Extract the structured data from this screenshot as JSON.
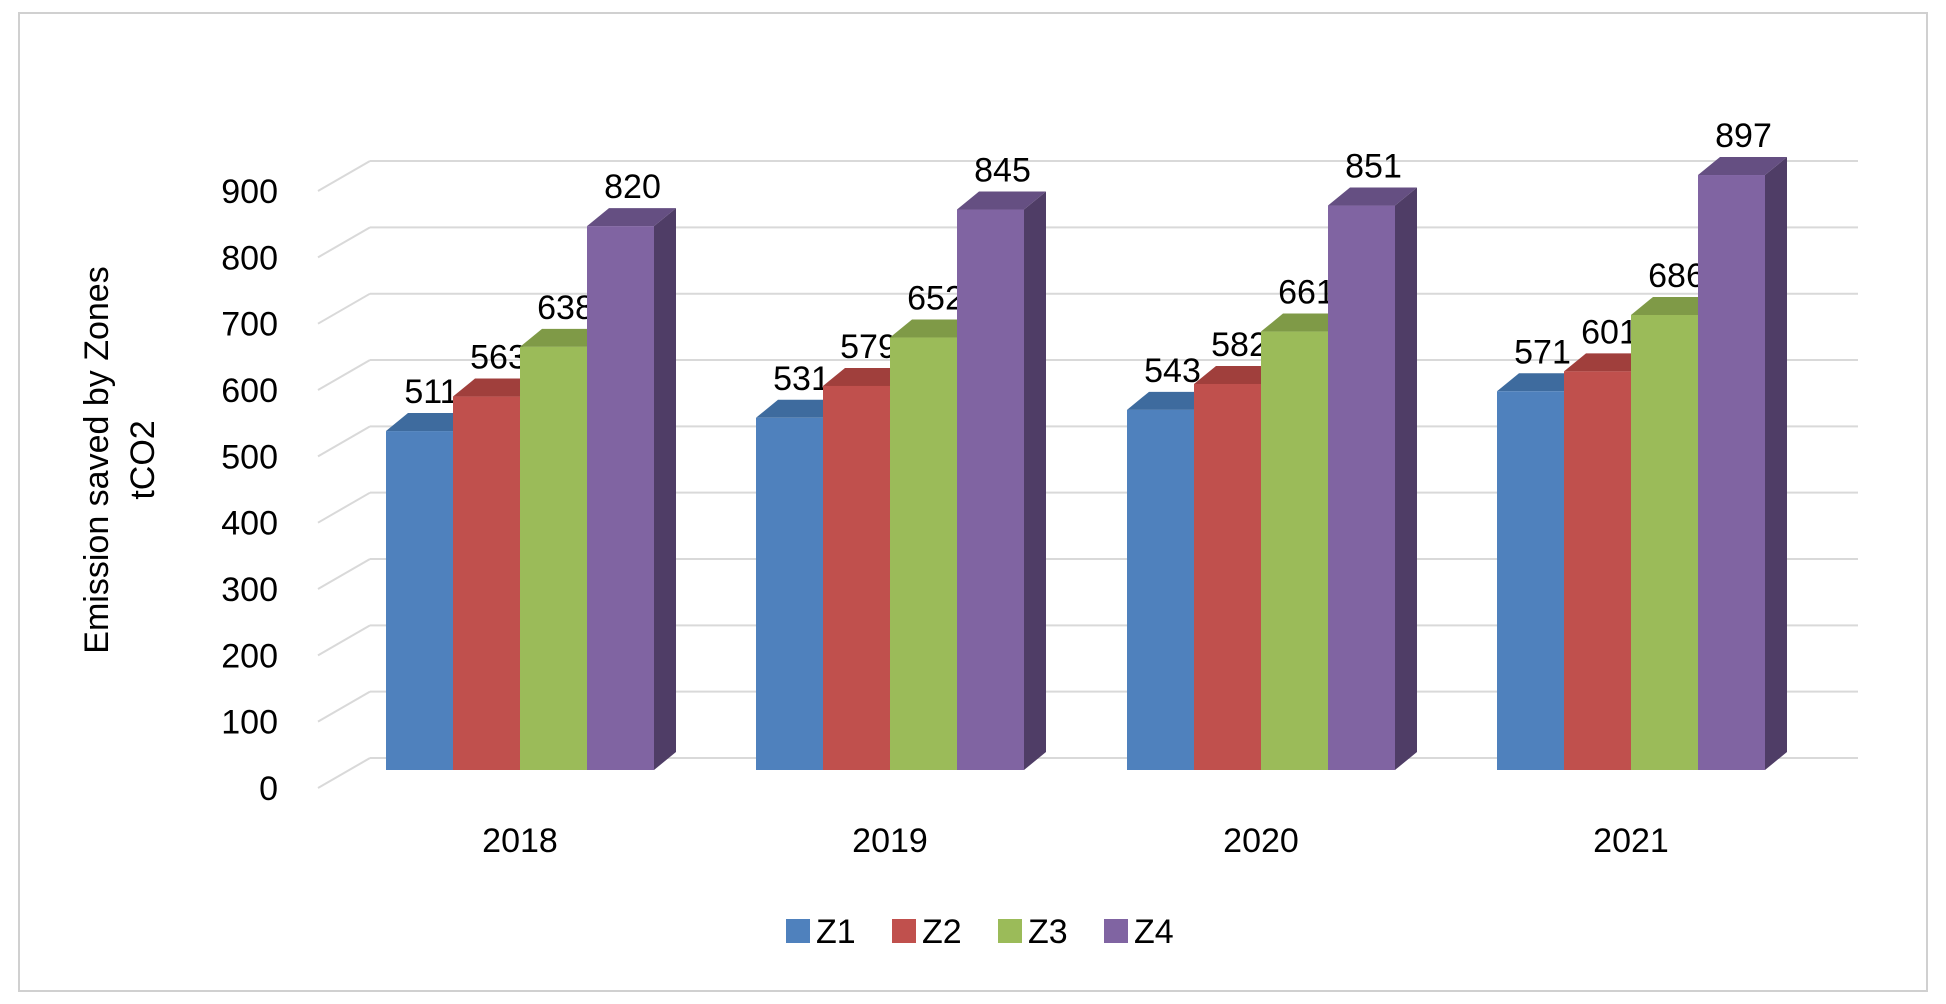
{
  "chart_data": {
    "type": "bar",
    "title": "",
    "xlabel": "",
    "ylabel_line1": "Emission saved by Zones",
    "ylabel_line2": "tCO2",
    "ylim": [
      0,
      900
    ],
    "yticks": [
      "0",
      "100",
      "200",
      "300",
      "400",
      "500",
      "600",
      "700",
      "800",
      "900"
    ],
    "categories": [
      "2018",
      "2019",
      "2020",
      "2021"
    ],
    "series": [
      {
        "name": "Z1",
        "color": "#4f81bd",
        "top": "#3e6b9e",
        "side": "#2f5383",
        "values": [
          511,
          531,
          543,
          571
        ]
      },
      {
        "name": "Z2",
        "color": "#c0504d",
        "top": "#a03f3c",
        "side": "#8a3533",
        "values": [
          563,
          579,
          582,
          601
        ]
      },
      {
        "name": "Z3",
        "color": "#9bbb59",
        "top": "#7f9a47",
        "side": "#68803a",
        "values": [
          638,
          652,
          661,
          686
        ]
      },
      {
        "name": "Z4",
        "color": "#8064a2",
        "top": "#654f82",
        "side": "#4f3d66",
        "values": [
          820,
          845,
          851,
          897
        ]
      }
    ],
    "legend_position": "bottom",
    "grid": true
  }
}
